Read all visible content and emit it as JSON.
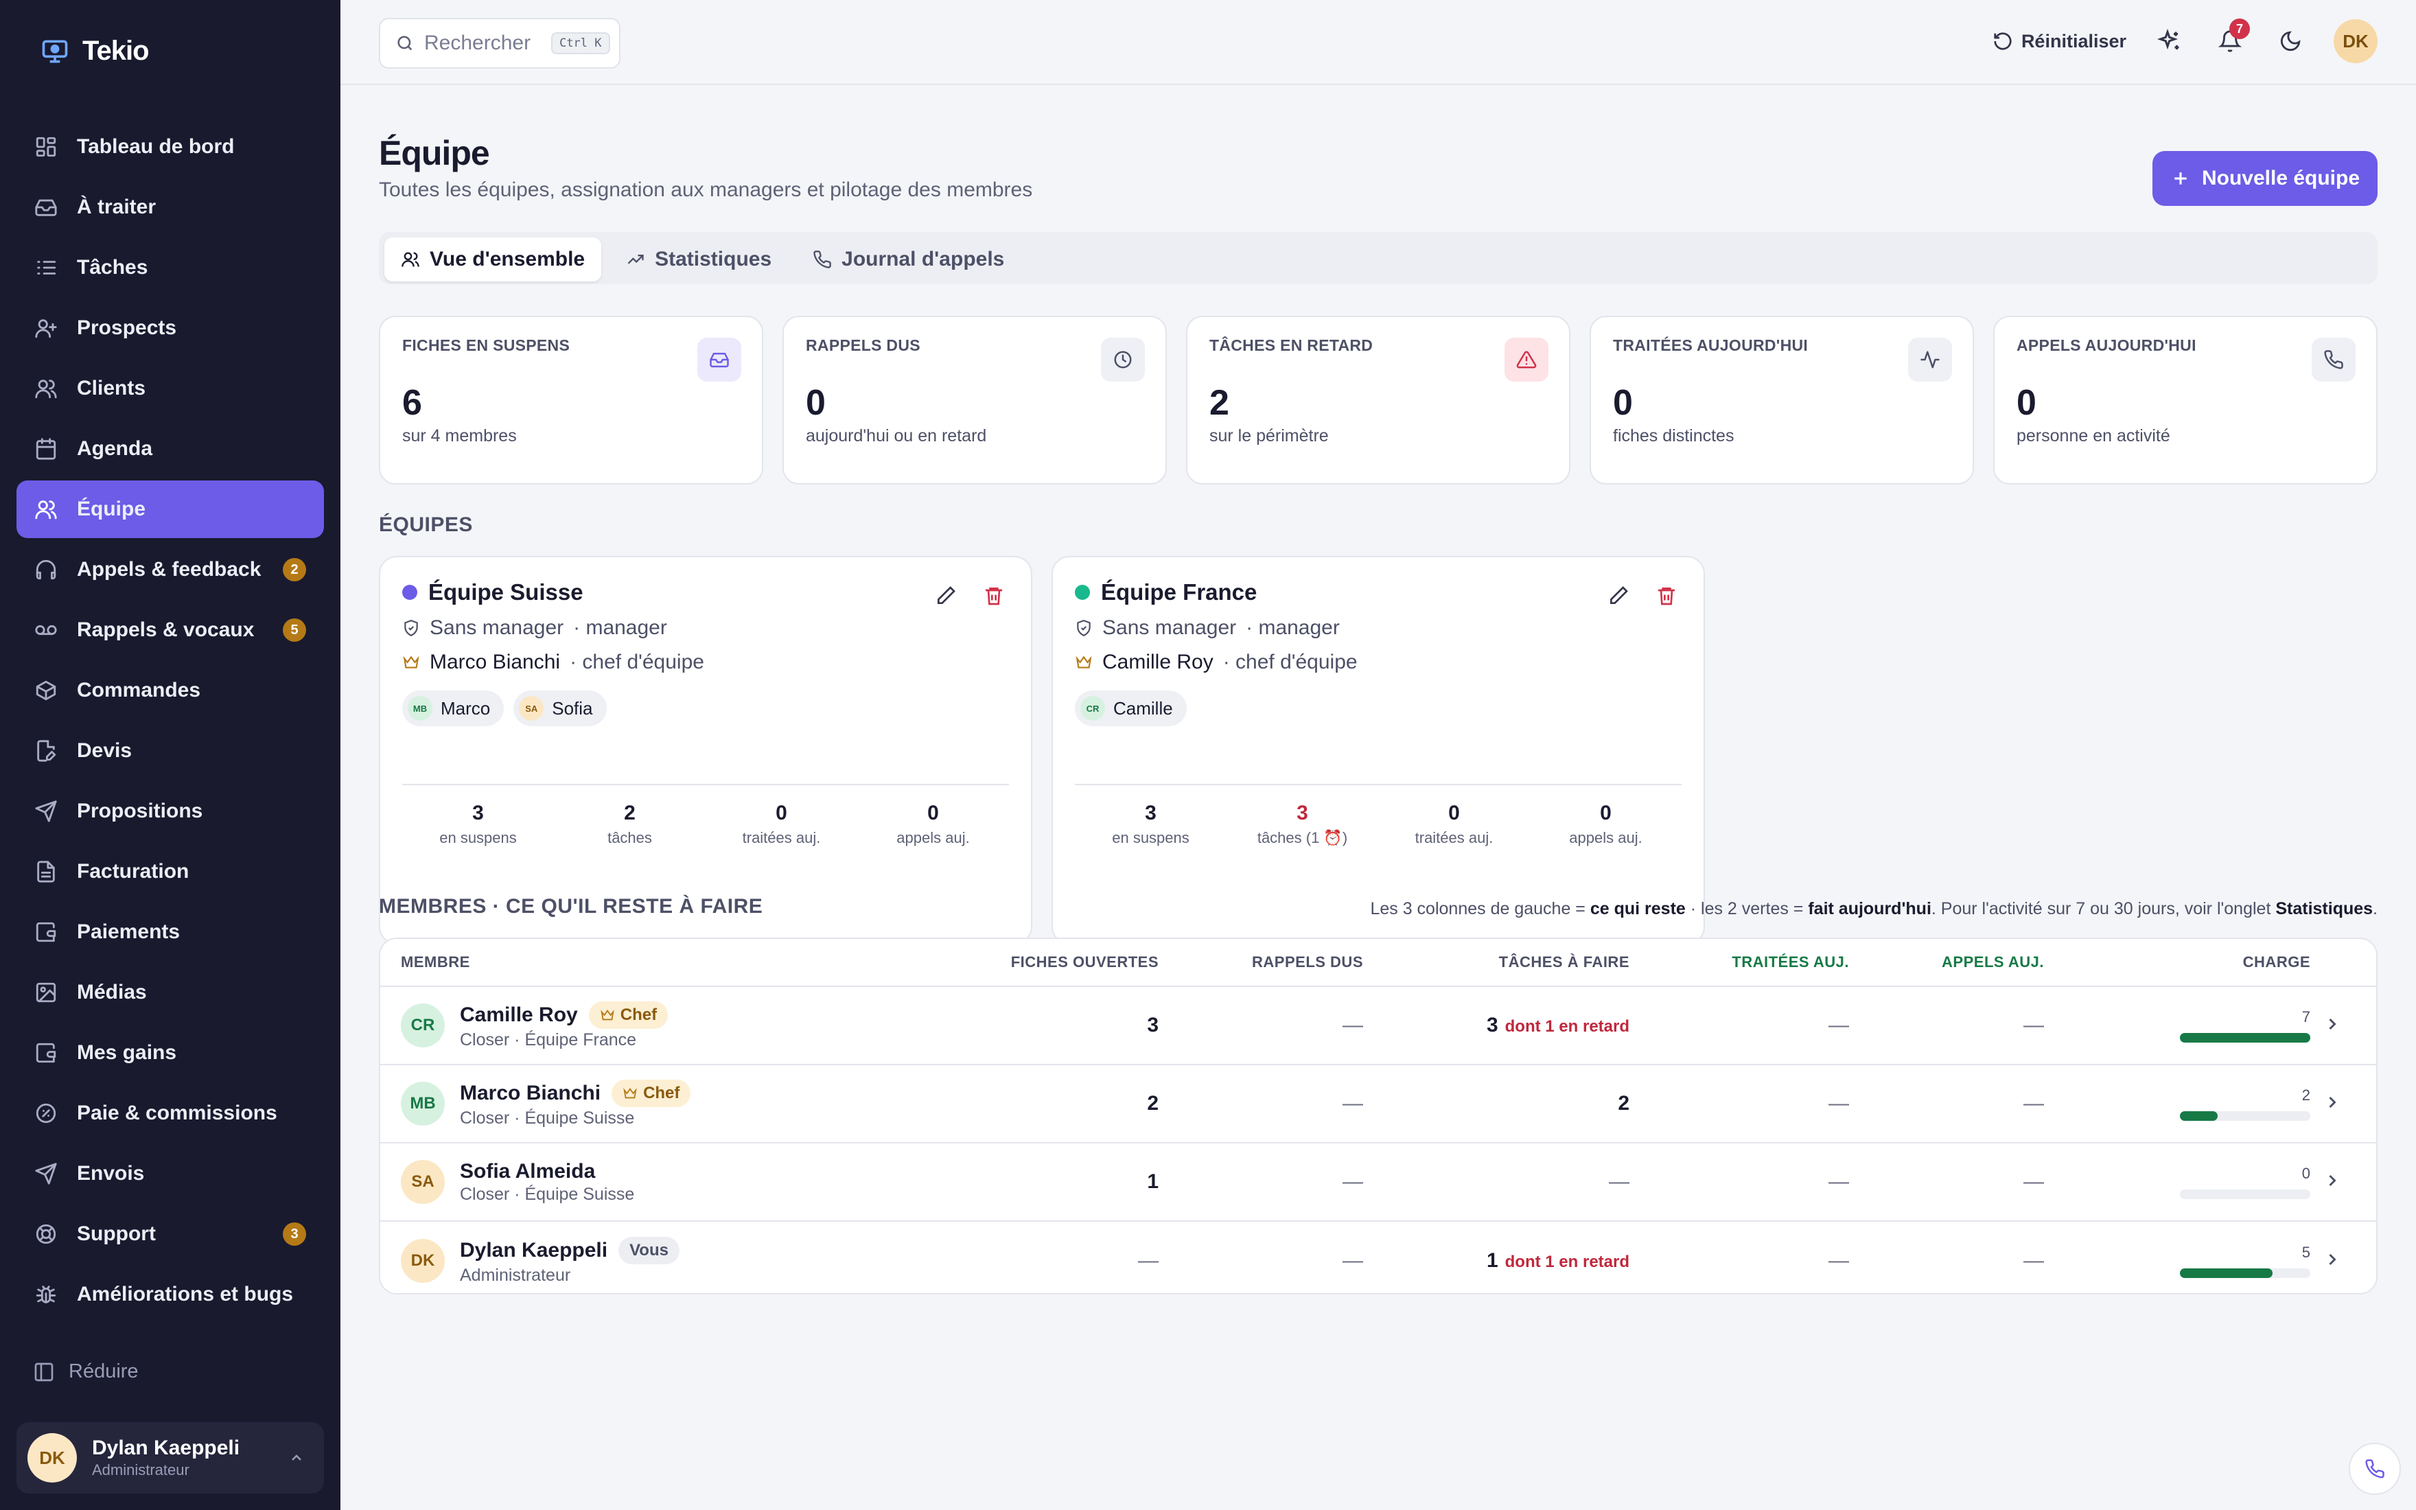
{
  "app": {
    "name": "Tekio"
  },
  "sidebar": {
    "items": [
      {
        "label": "Tableau de bord",
        "icon": "dashboard-icon"
      },
      {
        "label": "À traiter",
        "icon": "inbox-icon"
      },
      {
        "label": "Tâches",
        "icon": "list-icon"
      },
      {
        "label": "Prospects",
        "icon": "user-plus-icon"
      },
      {
        "label": "Clients",
        "icon": "users-icon"
      },
      {
        "label": "Agenda",
        "icon": "calendar-icon"
      },
      {
        "label": "Équipe",
        "icon": "team-icon",
        "active": true
      },
      {
        "label": "Appels & feedback",
        "icon": "headphones-icon",
        "badge": "2"
      },
      {
        "label": "Rappels & vocaux",
        "icon": "voicemail-icon",
        "badge": "5"
      },
      {
        "label": "Commandes",
        "icon": "package-icon"
      },
      {
        "label": "Devis",
        "icon": "file-edit-icon"
      },
      {
        "label": "Propositions",
        "icon": "send-icon"
      },
      {
        "label": "Facturation",
        "icon": "receipt-icon"
      },
      {
        "label": "Paiements",
        "icon": "wallet-icon"
      },
      {
        "label": "Médias",
        "icon": "image-icon"
      },
      {
        "label": "Mes gains",
        "icon": "wallet-icon"
      },
      {
        "label": "Paie & commissions",
        "icon": "badge-icon"
      },
      {
        "label": "Envois",
        "icon": "send-icon"
      },
      {
        "label": "Support",
        "icon": "lifebuoy-icon",
        "badge": "3"
      },
      {
        "label": "Améliorations et bugs",
        "icon": "bug-icon"
      }
    ],
    "collapse_label": "Réduire",
    "user": {
      "initials": "DK",
      "name": "Dylan Kaeppeli",
      "role": "Administrateur"
    }
  },
  "topbar": {
    "search_placeholder": "Rechercher",
    "search_shortcut": "Ctrl K",
    "reset_label": "Réinitialiser",
    "notifications_count": "7",
    "avatar_initials": "DK"
  },
  "page": {
    "title": "Équipe",
    "subtitle": "Toutes les équipes, assignation aux managers et pilotage des membres",
    "new_team_label": "Nouvelle équipe",
    "tabs": [
      {
        "label": "Vue d'ensemble",
        "active": true
      },
      {
        "label": "Statistiques"
      },
      {
        "label": "Journal d'appels"
      }
    ]
  },
  "stats": [
    {
      "label": "FICHES EN SUSPENS",
      "value": "6",
      "sub": "sur 4 membres",
      "icon": "inbox-icon",
      "tint": "#ece9fc",
      "stroke": "#6c5ce7"
    },
    {
      "label": "RAPPELS DUS",
      "value": "0",
      "sub": "aujourd'hui ou en retard",
      "icon": "clock-icon",
      "tint": "#eef0f5",
      "stroke": "#4d5066"
    },
    {
      "label": "TÂCHES EN RETARD",
      "value": "2",
      "sub": "sur le périmètre",
      "icon": "alert-icon",
      "tint": "#fde2e6",
      "stroke": "#d1324a"
    },
    {
      "label": "TRAITÉES AUJOURD'HUI",
      "value": "0",
      "sub": "fiches distinctes",
      "icon": "activity-icon",
      "tint": "#eef0f5",
      "stroke": "#4d5066"
    },
    {
      "label": "APPELS AUJOURD'HUI",
      "value": "0",
      "sub": "personne en activité",
      "icon": "phone-icon",
      "tint": "#eef0f5",
      "stroke": "#4d5066"
    }
  ],
  "teams_section": {
    "title": "ÉQUIPES"
  },
  "teams": [
    {
      "name": "Équipe Suisse",
      "color": "#6c5ce7",
      "manager": "Sans manager",
      "manager_suffix": "· manager",
      "lead": "Marco Bianchi",
      "lead_suffix": "· chef d'équipe",
      "members": [
        {
          "initials": "MB",
          "name": "Marco",
          "bg": "#d7f1e0",
          "fg": "#177a46"
        },
        {
          "initials": "SA",
          "name": "Sofia",
          "bg": "#fbe7c4",
          "fg": "#8a5a0e"
        }
      ],
      "stats": [
        {
          "value": "3",
          "label": "en suspens"
        },
        {
          "value": "2",
          "label": "tâches"
        },
        {
          "value": "0",
          "label": "traitées auj."
        },
        {
          "value": "0",
          "label": "appels auj."
        }
      ]
    },
    {
      "name": "Équipe France",
      "color": "#18b98c",
      "manager": "Sans manager",
      "manager_suffix": "· manager",
      "lead": "Camille Roy",
      "lead_suffix": "· chef d'équipe",
      "members": [
        {
          "initials": "CR",
          "name": "Camille",
          "bg": "#d7f1e0",
          "fg": "#177a46"
        }
      ],
      "stats": [
        {
          "value": "3",
          "label": "en suspens"
        },
        {
          "value": "3",
          "label": "tâches (1 ⏰)",
          "alert": true
        },
        {
          "value": "0",
          "label": "traitées auj."
        },
        {
          "value": "0",
          "label": "appels auj."
        }
      ]
    }
  ],
  "members_section": {
    "title": "MEMBRES · CE QU'IL RESTE À FAIRE",
    "note_1": "Les 3 colonnes de gauche = ",
    "note_2": "ce qui reste",
    "note_3": " · les 2 vertes = ",
    "note_4": "fait aujourd'hui",
    "note_5": ". Pour l'activité sur 7 ou 30 jours, voir l'onglet ",
    "note_6": "Statistiques",
    "note_7": ".",
    "columns": {
      "member": "MEMBRE",
      "open": "FICHES OUVERTES",
      "recalls": "RAPPELS DUS",
      "tasks": "TÂCHES À FAIRE",
      "done": "TRAITÉES AUJ.",
      "calls": "APPELS AUJ.",
      "charge": "CHARGE"
    },
    "rows": [
      {
        "initials": "CR",
        "name": "Camille Roy",
        "tag": "Chef",
        "tag_type": "chef",
        "role": "Closer · Équipe France",
        "open": "3",
        "recalls": "—",
        "tasks": "3",
        "late": "dont 1 en retard",
        "done": "—",
        "calls": "—",
        "charge": "7",
        "charge_fraction": 1.0,
        "bg": "#d7f1e0",
        "fg": "#177a46"
      },
      {
        "initials": "MB",
        "name": "Marco Bianchi",
        "tag": "Chef",
        "tag_type": "chef",
        "role": "Closer · Équipe Suisse",
        "open": "2",
        "recalls": "—",
        "tasks": "2",
        "late": "",
        "done": "—",
        "calls": "—",
        "charge": "2",
        "charge_fraction": 0.29,
        "bg": "#d7f1e0",
        "fg": "#177a46"
      },
      {
        "initials": "SA",
        "name": "Sofia Almeida",
        "tag": "",
        "tag_type": "",
        "role": "Closer · Équipe Suisse",
        "open": "1",
        "recalls": "—",
        "tasks": "—",
        "late": "",
        "done": "—",
        "calls": "—",
        "charge": "0",
        "charge_fraction": 0,
        "bg": "#fbe7c4",
        "fg": "#8a5a0e"
      },
      {
        "initials": "DK",
        "name": "Dylan Kaeppeli",
        "tag": "Vous",
        "tag_type": "vous",
        "role": "Administrateur",
        "open": "—",
        "recalls": "—",
        "tasks": "1",
        "late": "dont 1 en retard",
        "done": "—",
        "calls": "—",
        "charge": "5",
        "charge_fraction": 0.71,
        "bg": "#fbe7c4",
        "fg": "#8a5a0e"
      }
    ]
  }
}
